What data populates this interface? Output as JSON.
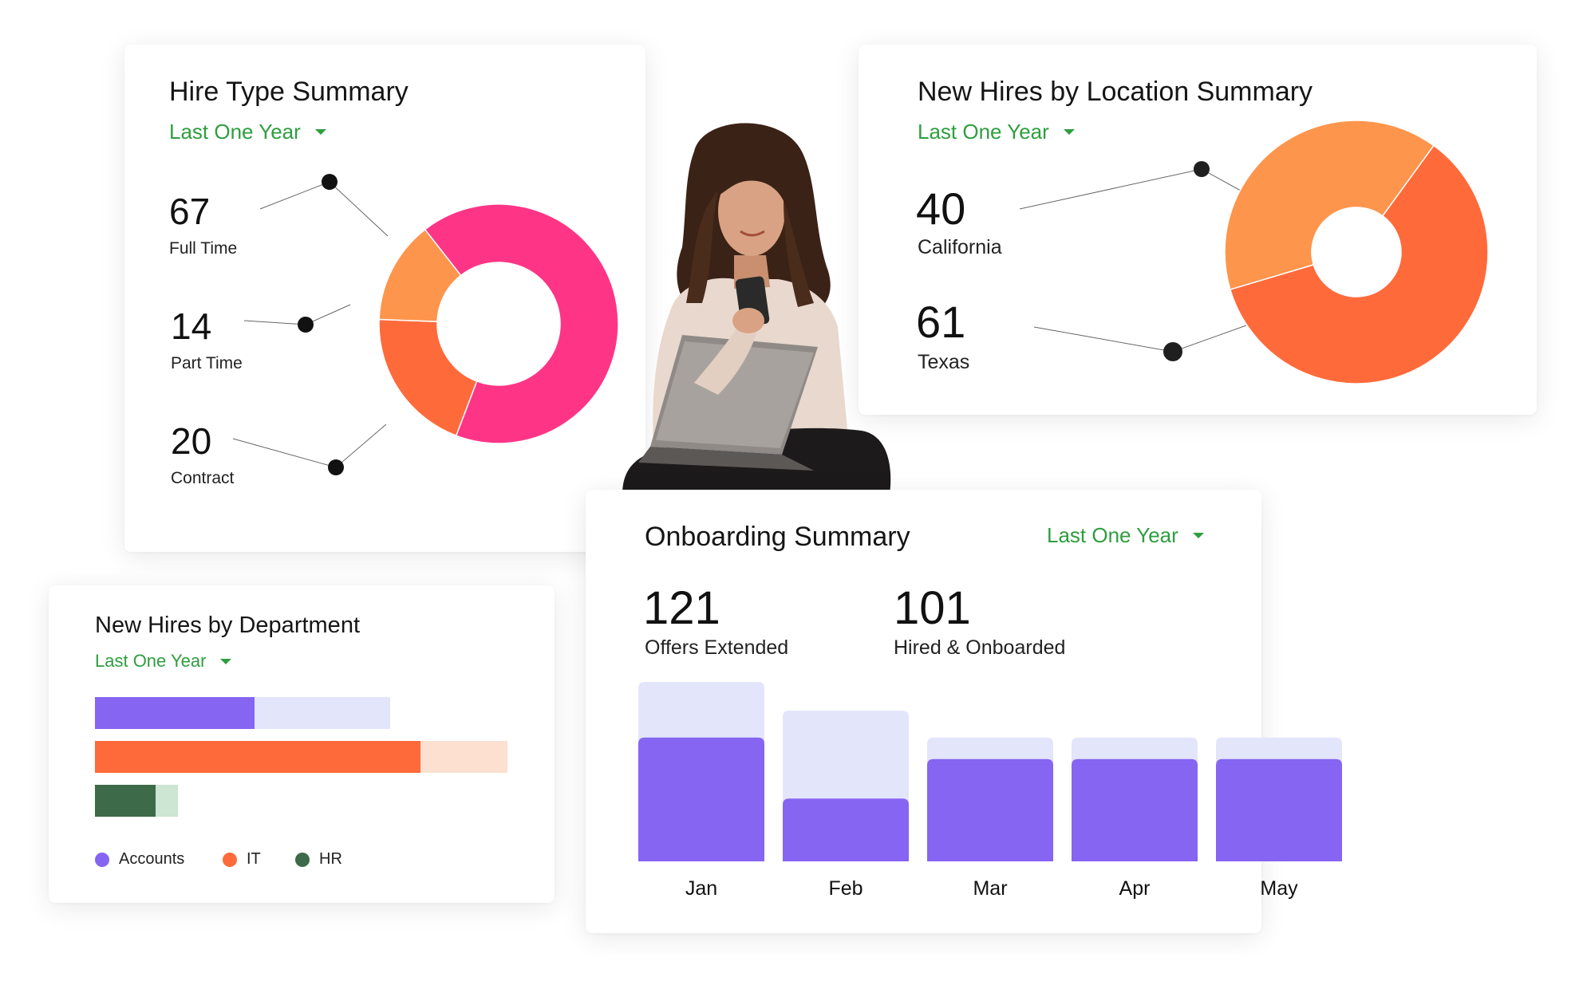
{
  "hire_type": {
    "title": "Hire Type Summary",
    "filter": "Last One Year",
    "items": [
      {
        "value": "67",
        "label": "Full Time",
        "color": "#fe3587"
      },
      {
        "value": "14",
        "label": "Part Time",
        "color": "#fe954c"
      },
      {
        "value": "20",
        "label": "Contract",
        "color": "#ff6a3b"
      }
    ]
  },
  "location": {
    "title": "New Hires by Location Summary",
    "filter": "Last One Year",
    "items": [
      {
        "value": "40",
        "label": "California",
        "color": "#fe954c"
      },
      {
        "value": "61",
        "label": "Texas",
        "color": "#ff6a3b"
      }
    ]
  },
  "department": {
    "title": "New Hires by Department",
    "filter": "Last One Year",
    "bars": [
      {
        "name": "Accounts",
        "value": 0.54,
        "color": "#8565f2",
        "track": "#e3e5fb"
      },
      {
        "name": "IT",
        "value": 0.79,
        "color": "#ff6a3b",
        "track": "#fde0cf"
      },
      {
        "name": "HR",
        "value": 0.73,
        "color": "#3d6a48",
        "track": "#cde5d3"
      }
    ],
    "legend": [
      {
        "label": "Accounts",
        "color": "#8565f2"
      },
      {
        "label": "IT",
        "color": "#ff6a3b"
      },
      {
        "label": "HR",
        "color": "#3d6a48"
      }
    ]
  },
  "onboarding": {
    "title": "Onboarding Summary",
    "filter": "Last One Year",
    "stats": [
      {
        "value": "121",
        "label": "Offers Extended"
      },
      {
        "value": "101",
        "label": "Hired & Onboarded"
      }
    ]
  },
  "chart_data": {
    "type": "bar",
    "categories": [
      "Jan",
      "Feb",
      "Mar",
      "Apr",
      "May"
    ],
    "series": [
      {
        "values": [
          100,
          84,
          69,
          69,
          69
        ],
        "color": "#e3e5fb"
      },
      {
        "values": [
          69,
          35,
          57,
          57,
          57
        ],
        "color": "#8565f2"
      }
    ],
    "ylim": [
      0,
      100
    ],
    "grid": false
  }
}
